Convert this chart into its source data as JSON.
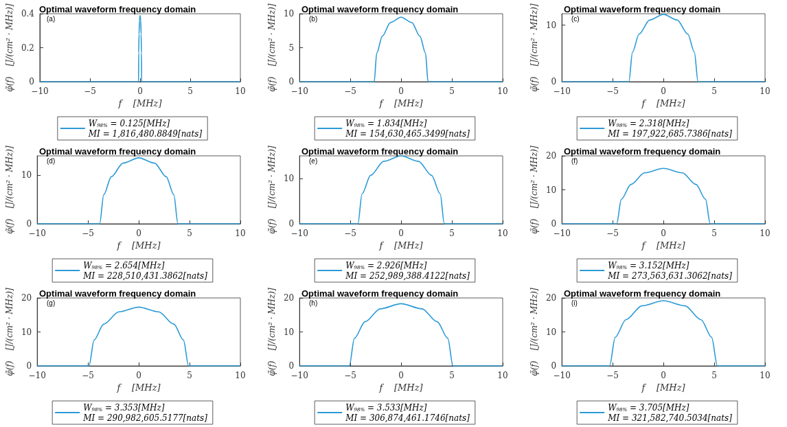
{
  "chart_data": [
    {
      "type": "line",
      "title": "Optimal waveform frequency domain",
      "xlabel": "f    [MHz]",
      "ylabel": "φ̃(f)    [J/(cm² · MHz)]",
      "annotations": [
        "(a)"
      ],
      "xlim": [
        -10,
        10
      ],
      "xticks": [
        -10,
        -5,
        0,
        5,
        10
      ],
      "ylim": [
        0,
        0.4
      ],
      "yticks": [
        0,
        0.2,
        0.4
      ],
      "legend": "bottom",
      "marker": "none",
      "series": [
        {
          "name": "W$_{98%}$ = 0.125[MHz]\nMI = 1,816,480.8849[nats]",
          "color": "#2b9ad6",
          "x": [
            -10,
            -0.15,
            -0.135,
            -0.105,
            -0.06,
            0,
            0.06,
            0.105,
            0.135,
            0.15,
            10
          ],
          "values": [
            0,
            0,
            0.17,
            0.28,
            0.36,
            0.39,
            0.36,
            0.28,
            0.17,
            0,
            0
          ]
        }
      ]
    },
    {
      "type": "line",
      "title": "Optimal waveform frequency domain",
      "xlabel": "f    [MHz]",
      "ylabel": "φ̃(f)    [J/(cm² · MHz)]",
      "annotations": [
        "(b)"
      ],
      "xlim": [
        -10,
        10
      ],
      "xticks": [
        -10,
        -5,
        0,
        5,
        10
      ],
      "ylim": [
        0,
        10
      ],
      "yticks": [
        0,
        5,
        10
      ],
      "legend": "bottom",
      "marker": "none",
      "series": [
        {
          "name": "W$_{98%}$ = 1.834[MHz]\nMI = 154,630,465.3499[nats]",
          "color": "#2b9ad6",
          "x": [
            -10,
            -2.65,
            -2.4,
            -1.85,
            -1.05,
            0,
            1.05,
            1.85,
            2.4,
            2.65,
            10
          ],
          "values": [
            0,
            0,
            4.2,
            6.7,
            8.7,
            9.5,
            8.7,
            6.7,
            4.2,
            0,
            0
          ]
        }
      ]
    },
    {
      "type": "line",
      "title": "Optimal waveform frequency domain",
      "xlabel": "f    [MHz]",
      "ylabel": "φ̃(f)    [J/(cm² · MHz)]",
      "annotations": [
        "(c)"
      ],
      "xlim": [
        -10,
        10
      ],
      "xticks": [
        -10,
        -5,
        0,
        5,
        10
      ],
      "ylim": [
        0,
        12
      ],
      "yticks": [
        0,
        10
      ],
      "legend": "bottom",
      "marker": "none",
      "series": [
        {
          "name": "W$_{98%}$ = 2.318[MHz]\nMI = 197,922,685.7386[nats]",
          "color": "#2b9ad6",
          "x": [
            -10,
            -3.4,
            -3.05,
            -2.4,
            -1.35,
            0,
            1.35,
            2.4,
            3.05,
            3.4,
            10
          ],
          "values": [
            0,
            0,
            5.2,
            8.4,
            10.9,
            11.9,
            10.9,
            8.4,
            5.2,
            0,
            0
          ]
        }
      ]
    },
    {
      "type": "line",
      "title": "Optimal waveform frequency domain",
      "xlabel": "f    [MHz]",
      "ylabel": "φ̃(f)    [J/(cm² · MHz)]",
      "annotations": [
        "(d)"
      ],
      "xlim": [
        -10,
        10
      ],
      "xticks": [
        -10,
        -5,
        0,
        5,
        10
      ],
      "ylim": [
        0,
        14
      ],
      "yticks": [
        0,
        10
      ],
      "legend": "bottom",
      "marker": "none",
      "series": [
        {
          "name": "W$_{98%}$ = 2.654[MHz]\nMI = 228,510,431.3862[nats]",
          "color": "#2b9ad6",
          "x": [
            -10,
            -3.85,
            -3.45,
            -2.7,
            -1.55,
            0,
            1.55,
            2.7,
            3.45,
            3.85,
            10
          ],
          "values": [
            0,
            0,
            6,
            9.7,
            12.5,
            13.6,
            12.5,
            9.7,
            6,
            0,
            0
          ]
        }
      ]
    },
    {
      "type": "line",
      "title": "Optimal waveform frequency domain",
      "xlabel": "f    [MHz]",
      "ylabel": "φ̃(f)    [J/(cm² · MHz)]",
      "annotations": [
        "(e)"
      ],
      "xlim": [
        -10,
        10
      ],
      "xticks": [
        -10,
        -5,
        0,
        5,
        10
      ],
      "ylim": [
        0,
        15
      ],
      "yticks": [
        0,
        10
      ],
      "legend": "bottom",
      "marker": "none",
      "series": [
        {
          "name": "W$_{98%}$ = 2.926[MHz]\nMI = 252,989,388.4122[nats]",
          "color": "#2b9ad6",
          "x": [
            -10,
            -4.25,
            -3.85,
            -3,
            -1.7,
            0,
            1.7,
            3,
            3.85,
            4.25,
            10
          ],
          "values": [
            0,
            0,
            6.6,
            10.7,
            13.8,
            15,
            13.8,
            10.7,
            6.6,
            0,
            0
          ]
        }
      ]
    },
    {
      "type": "line",
      "title": "Optimal waveform frequency domain",
      "xlabel": "f    [MHz]",
      "ylabel": "φ̃(f)    [J/(cm² · MHz)]",
      "annotations": [
        "(f)"
      ],
      "xlim": [
        -10,
        10
      ],
      "xticks": [
        -10,
        -5,
        0,
        5,
        10
      ],
      "ylim": [
        0,
        20
      ],
      "yticks": [
        0,
        10,
        20
      ],
      "legend": "bottom",
      "marker": "none",
      "series": [
        {
          "name": "W$_{98%}$ = 3.152[MHz]\nMI = 273,563,631.3062[nats]",
          "color": "#2b9ad6",
          "x": [
            -10,
            -4.6,
            -4.15,
            -3.2,
            -1.85,
            0,
            1.85,
            3.2,
            4.15,
            4.6,
            10
          ],
          "values": [
            0,
            0,
            7.2,
            11.6,
            15,
            16.3,
            15,
            11.6,
            7.2,
            0,
            0
          ]
        }
      ]
    },
    {
      "type": "line",
      "title": "Optimal waveform frequency domain",
      "xlabel": "f    [MHz]",
      "ylabel": "φ̃(f)    [J/(cm² · MHz)]",
      "annotations": [
        "(g)"
      ],
      "xlim": [
        -10,
        10
      ],
      "xticks": [
        -10,
        -5,
        0,
        5,
        10
      ],
      "ylim": [
        0,
        20
      ],
      "yticks": [
        0,
        10,
        20
      ],
      "legend": "bottom",
      "marker": "none",
      "series": [
        {
          "name": "W$_{98%}$ = 3.353[MHz]\nMI = 290,982,605.5177[nats]",
          "color": "#2b9ad6",
          "x": [
            -10,
            -4.9,
            -4.4,
            -3.45,
            -1.95,
            0,
            1.95,
            3.45,
            4.4,
            4.9,
            10
          ],
          "values": [
            0,
            0,
            7.6,
            12.3,
            15.9,
            17.3,
            15.9,
            12.3,
            7.6,
            0,
            0
          ]
        }
      ]
    },
    {
      "type": "line",
      "title": "Optimal waveform frequency domain",
      "xlabel": "f    [MHz]",
      "ylabel": "φ̃(f)    [J/(cm² · MHz)]",
      "annotations": [
        "(h)"
      ],
      "xlim": [
        -10,
        10
      ],
      "xticks": [
        -10,
        -5,
        0,
        5,
        10
      ],
      "ylim": [
        0,
        20
      ],
      "yticks": [
        0,
        10,
        20
      ],
      "legend": "bottom",
      "marker": "none",
      "series": [
        {
          "name": "W$_{98%}$ = 3.533[MHz]\nMI = 306,874,461.1746[nats]",
          "color": "#2b9ad6",
          "x": [
            -10,
            -5.1,
            -4.6,
            -3.55,
            -2.05,
            0,
            2.05,
            3.55,
            4.6,
            5.1,
            10
          ],
          "values": [
            0,
            0,
            8.1,
            13,
            16.8,
            18.3,
            16.8,
            13,
            8.1,
            0,
            0
          ]
        }
      ]
    },
    {
      "type": "line",
      "title": "Optimal waveform frequency domain",
      "xlabel": "f    [MHz]",
      "ylabel": "φ̃(f)    [J/(cm² · MHz)]",
      "annotations": [
        "(i)"
      ],
      "xlim": [
        -10,
        10
      ],
      "xticks": [
        -10,
        -5,
        0,
        5,
        10
      ],
      "ylim": [
        0,
        20
      ],
      "yticks": [
        0,
        10,
        20
      ],
      "legend": "bottom",
      "marker": "none",
      "series": [
        {
          "name": "W$_{98%}$ = 3.705[MHz]\nMI = 321,582,740.5034[nats]",
          "color": "#2b9ad6",
          "x": [
            -10,
            -5.3,
            -4.75,
            -3.7,
            -2.1,
            0,
            2.1,
            3.7,
            4.75,
            5.3,
            10
          ],
          "values": [
            0,
            0,
            8.4,
            13.6,
            17.7,
            19.2,
            17.7,
            13.6,
            8.4,
            0,
            0
          ]
        }
      ]
    }
  ]
}
